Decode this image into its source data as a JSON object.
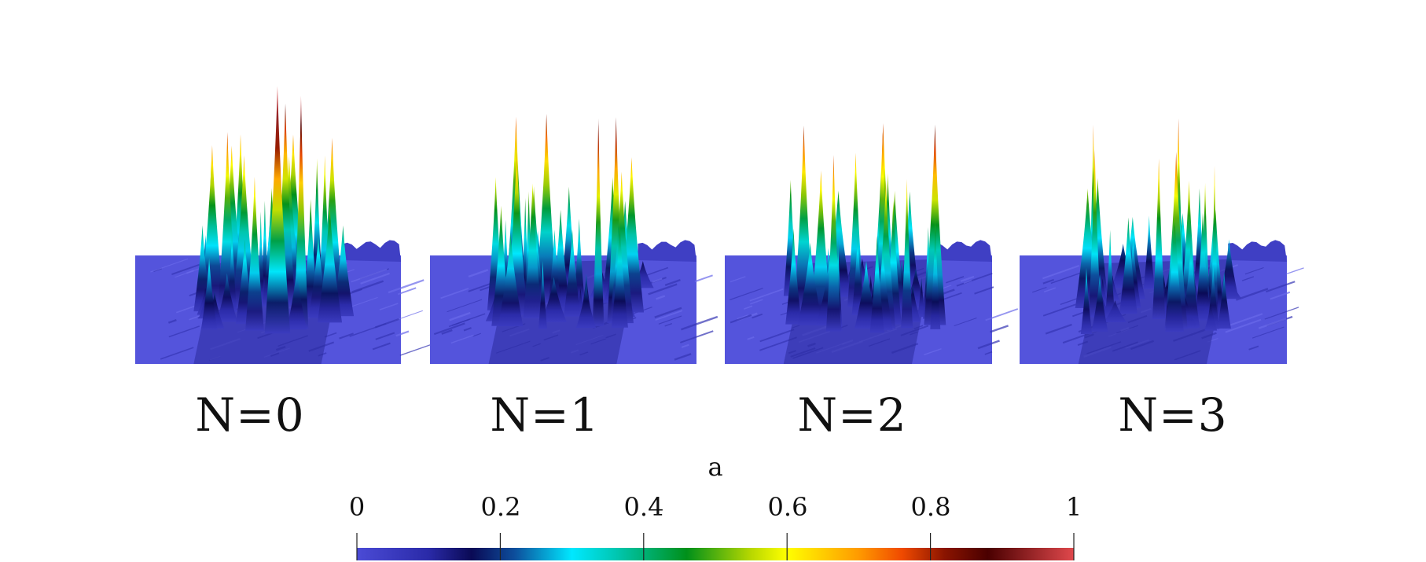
{
  "panels": [
    {
      "label": "N=0",
      "seed": 11,
      "peak_scale": 1.0
    },
    {
      "label": "N=1",
      "seed": 23,
      "peak_scale": 0.92
    },
    {
      "label": "N=2",
      "seed": 37,
      "peak_scale": 0.86
    },
    {
      "label": "N=3",
      "seed": 53,
      "peak_scale": 0.8
    }
  ],
  "colorbar": {
    "title": "a",
    "ticks": [
      "0",
      "0.2",
      "0.4",
      "0.6",
      "0.8",
      "1"
    ],
    "tick_values": [
      0,
      0.2,
      0.4,
      0.6,
      0.8,
      1
    ],
    "range": [
      0,
      1
    ],
    "colormap": [
      {
        "v": 0.0,
        "c": "#4b4bd6"
      },
      {
        "v": 0.1,
        "c": "#2a2aa8"
      },
      {
        "v": 0.16,
        "c": "#0a0a55"
      },
      {
        "v": 0.22,
        "c": "#0d4e9c"
      },
      {
        "v": 0.3,
        "c": "#00e8ff"
      },
      {
        "v": 0.36,
        "c": "#00c8b4"
      },
      {
        "v": 0.46,
        "c": "#00901a"
      },
      {
        "v": 0.55,
        "c": "#b8d800"
      },
      {
        "v": 0.6,
        "c": "#ffff00"
      },
      {
        "v": 0.7,
        "c": "#ff9a00"
      },
      {
        "v": 0.76,
        "c": "#f04a00"
      },
      {
        "v": 0.82,
        "c": "#8a1400"
      },
      {
        "v": 0.88,
        "c": "#4a0000"
      },
      {
        "v": 1.0,
        "c": "#e0484c"
      }
    ]
  }
}
